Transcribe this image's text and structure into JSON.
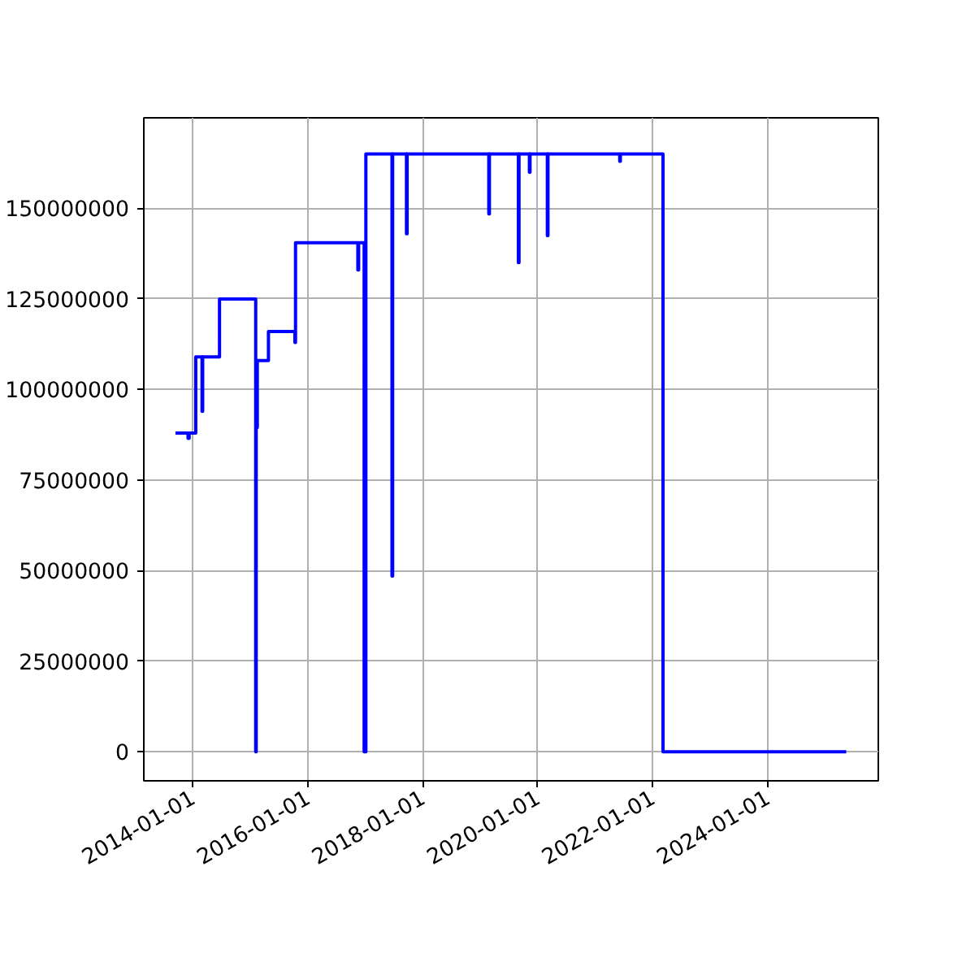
{
  "chart_data": {
    "type": "step",
    "color": "#0000ff",
    "grid": true,
    "x": [
      "2013-09-13",
      "2013-12-02",
      "2013-12-09",
      "2014-01-20",
      "2014-03-01",
      "2014-03-05",
      "2014-06-20",
      "2015-02-05",
      "2015-02-08",
      "2015-02-12",
      "2015-02-15",
      "2015-04-27",
      "2015-10-12",
      "2015-10-16",
      "2016-11-15",
      "2016-11-20",
      "2016-12-25",
      "2017-01-05",
      "2017-06-20",
      "2017-06-24",
      "2017-09-20",
      "2017-09-24",
      "2019-02-25",
      "2019-03-01",
      "2019-09-01",
      "2019-09-05",
      "2019-11-10",
      "2019-11-14",
      "2020-03-03",
      "2020-03-07",
      "2021-06-06",
      "2021-06-10",
      "2022-03-08",
      "2025-05-15"
    ],
    "values": [
      88000000,
      86500000,
      88000000,
      109000000,
      94000000,
      109000000,
      125000000,
      0,
      108000000,
      89500000,
      108000000,
      116000000,
      113000000,
      140500000,
      133000000,
      140500000,
      0,
      165000000,
      48500000,
      165000000,
      143000000,
      165000000,
      148500000,
      165000000,
      135000000,
      165000000,
      160000000,
      165000000,
      142500000,
      165000000,
      163000000,
      165000000,
      0,
      0
    ],
    "xlim": [
      "2013-02-24",
      "2025-12-05"
    ],
    "xticks": [
      "2014-01-01",
      "2016-01-01",
      "2018-01-01",
      "2020-01-01",
      "2022-01-01",
      "2024-01-01"
    ],
    "ylim": [
      -8000000,
      175000000
    ],
    "yticks": [
      0,
      25000000,
      50000000,
      75000000,
      100000000,
      125000000,
      150000000
    ]
  }
}
